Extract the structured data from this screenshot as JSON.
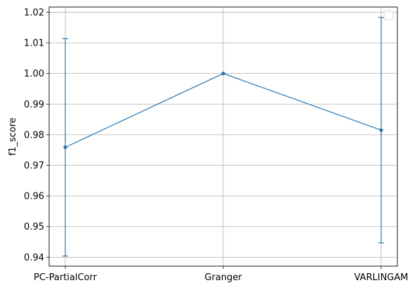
{
  "chart_data": {
    "type": "line",
    "title": "",
    "xlabel": "",
    "ylabel": "f1_score",
    "categories": [
      "PC-PartialCorr",
      "Granger",
      "VARLINGAM"
    ],
    "series": [
      {
        "values": [
          0.9759,
          1.0,
          0.9815
        ],
        "error_low": [
          0.9404,
          1.0,
          0.9447
        ],
        "error_high": [
          1.0114,
          1.0,
          1.0183
        ],
        "color": "#1f77b4"
      }
    ],
    "ylim": [
      0.9371,
      1.0217
    ],
    "yticks": [
      0.94,
      0.95,
      0.96,
      0.97,
      0.98,
      0.99,
      1.0,
      1.01,
      1.02
    ],
    "ytick_labels": [
      "0.94",
      "0.95",
      "0.96",
      "0.97",
      "0.98",
      "0.99",
      "1.00",
      "1.01",
      "1.02"
    ],
    "grid": true,
    "legend": "top-right, empty",
    "colors": {
      "line": "#1f77b4",
      "grid": "#b0b0b0",
      "axes": "#000000",
      "legend_border": "#cccccc"
    }
  }
}
